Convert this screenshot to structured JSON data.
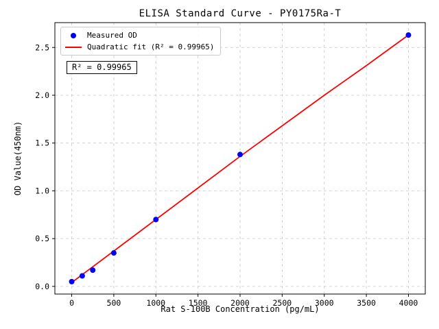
{
  "chart_data": {
    "type": "scatter",
    "title": "ELISA Standard Curve - PY0175Ra-T",
    "xlabel": "Rat S-100B Concentration (pg/mL)",
    "ylabel": "OD Value(450nm)",
    "xlim": [
      -200,
      4200
    ],
    "ylim": [
      -0.08,
      2.76
    ],
    "x_ticks": [
      0,
      500,
      1000,
      1500,
      2000,
      2500,
      3000,
      3500,
      4000
    ],
    "y_ticks": [
      0.0,
      0.5,
      1.0,
      1.5,
      2.0,
      2.5
    ],
    "grid": true,
    "grid_style": "dashed",
    "legend_position": "upper-left",
    "annotation": "R² = 0.99965",
    "r_squared": "0.99965",
    "colors": {
      "scatter": "#0000ff",
      "fit_line": "#ff0000",
      "grid": "#c8c8c8",
      "axes": "#000000"
    },
    "series": [
      {
        "name": "Measured OD",
        "kind": "scatter",
        "color": "#0000ff",
        "x": [
          0,
          125,
          250,
          500,
          1000,
          2000,
          4000
        ],
        "y": [
          0.05,
          0.11,
          0.17,
          0.35,
          0.7,
          1.38,
          2.63
        ]
      },
      {
        "name": "Quadratic fit (R² = 0.99965)",
        "kind": "line",
        "color": "#ff0000",
        "x": [
          0,
          500,
          1000,
          1500,
          2000,
          2500,
          3000,
          3500,
          4000
        ],
        "y": [
          0.04,
          0.37,
          0.7,
          1.03,
          1.36,
          1.68,
          2.0,
          2.31,
          2.63
        ]
      }
    ]
  }
}
